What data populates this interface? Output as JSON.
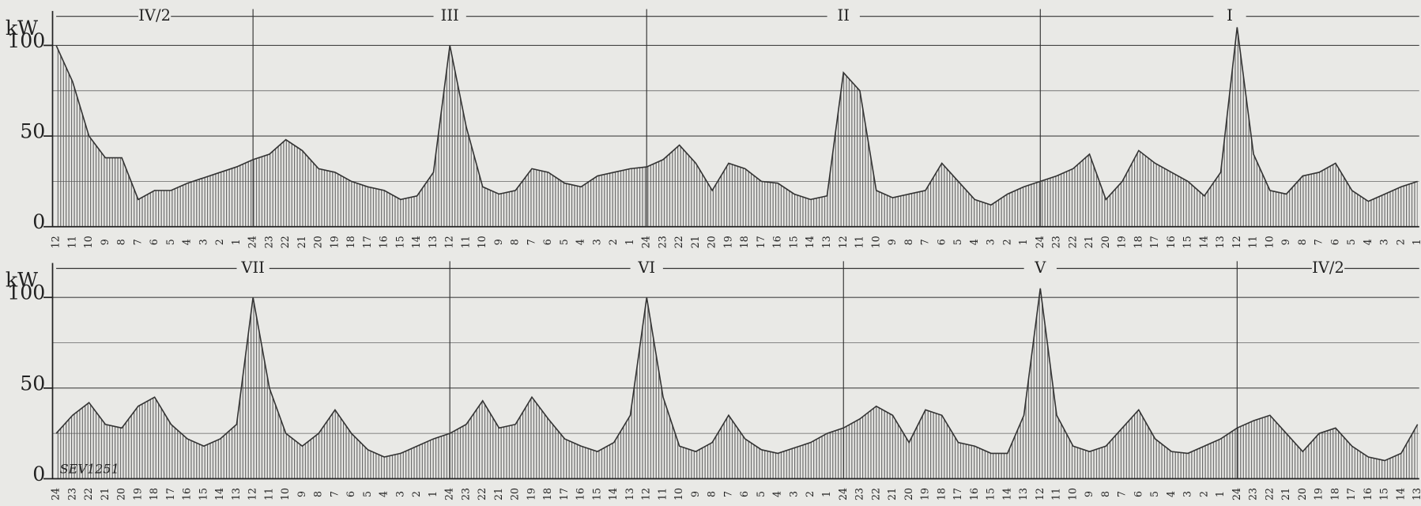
{
  "chart_data": [
    {
      "type": "area",
      "y_label": "kW",
      "sections": [
        "IV/2",
        "III",
        "II",
        "I"
      ],
      "categories": [
        12,
        11,
        10,
        9,
        8,
        7,
        6,
        5,
        4,
        3,
        2,
        1,
        24,
        23,
        22,
        21,
        20,
        19,
        18,
        17,
        16,
        15,
        14,
        13,
        12,
        11,
        10,
        9,
        8,
        7,
        6,
        5,
        4,
        3,
        2,
        1,
        24,
        23,
        22,
        21,
        20,
        19,
        18,
        17,
        16,
        15,
        14,
        13,
        12,
        11,
        10,
        9,
        8,
        7,
        6,
        5,
        4,
        3,
        2,
        1,
        24,
        23,
        22,
        21,
        20,
        19,
        18,
        17,
        16,
        15,
        14,
        13,
        12,
        11,
        10,
        9,
        8,
        7,
        6,
        5,
        4,
        3,
        2,
        1
      ],
      "values": [
        100,
        80,
        50,
        38,
        38,
        15,
        20,
        20,
        24,
        27,
        30,
        33,
        37,
        40,
        48,
        42,
        32,
        30,
        25,
        22,
        20,
        15,
        17,
        30,
        100,
        55,
        22,
        18,
        20,
        32,
        30,
        24,
        22,
        28,
        30,
        32,
        33,
        37,
        45,
        35,
        20,
        35,
        32,
        25,
        24,
        18,
        15,
        17,
        85,
        75,
        20,
        16,
        18,
        20,
        35,
        25,
        15,
        12,
        18,
        22,
        25,
        28,
        32,
        40,
        15,
        25,
        42,
        35,
        30,
        25,
        17,
        30,
        110,
        40,
        20,
        18,
        28,
        30,
        35,
        20,
        14,
        18,
        22,
        25
      ],
      "ylim": [
        0,
        115
      ],
      "yticks": [
        0,
        50,
        100
      ],
      "grid": true,
      "color": "#333333"
    },
    {
      "type": "area",
      "y_label": "kW",
      "sections": [
        "VII",
        "VI",
        "V",
        "IV/2"
      ],
      "annotation": "SEV1251",
      "categories": [
        24,
        23,
        22,
        21,
        20,
        19,
        18,
        17,
        16,
        15,
        14,
        13,
        12,
        11,
        10,
        9,
        8,
        7,
        6,
        5,
        4,
        3,
        2,
        1,
        24,
        23,
        22,
        21,
        20,
        19,
        18,
        17,
        16,
        15,
        14,
        13,
        12,
        11,
        10,
        9,
        8,
        7,
        6,
        5,
        4,
        3,
        2,
        1,
        24,
        23,
        22,
        21,
        20,
        19,
        18,
        17,
        16,
        15,
        14,
        13,
        12,
        11,
        10,
        9,
        8,
        7,
        6,
        5,
        4,
        3,
        2,
        1,
        24,
        23,
        22,
        21,
        20,
        19,
        18,
        17,
        16,
        15,
        14,
        13
      ],
      "values": [
        25,
        35,
        42,
        30,
        28,
        40,
        45,
        30,
        22,
        18,
        22,
        30,
        100,
        50,
        25,
        18,
        25,
        38,
        25,
        16,
        12,
        14,
        18,
        22,
        25,
        30,
        43,
        28,
        30,
        45,
        33,
        22,
        18,
        15,
        20,
        35,
        100,
        45,
        18,
        15,
        20,
        35,
        22,
        16,
        14,
        17,
        20,
        25,
        28,
        33,
        40,
        35,
        20,
        38,
        35,
        20,
        18,
        14,
        14,
        35,
        105,
        35,
        18,
        15,
        18,
        28,
        38,
        22,
        15,
        14,
        18,
        22,
        28,
        32,
        35,
        25,
        15,
        25,
        28,
        18,
        12,
        10,
        14,
        30
      ],
      "ylim": [
        0,
        115
      ],
      "yticks": [
        0,
        50,
        100
      ],
      "grid": true,
      "color": "#333333"
    }
  ]
}
